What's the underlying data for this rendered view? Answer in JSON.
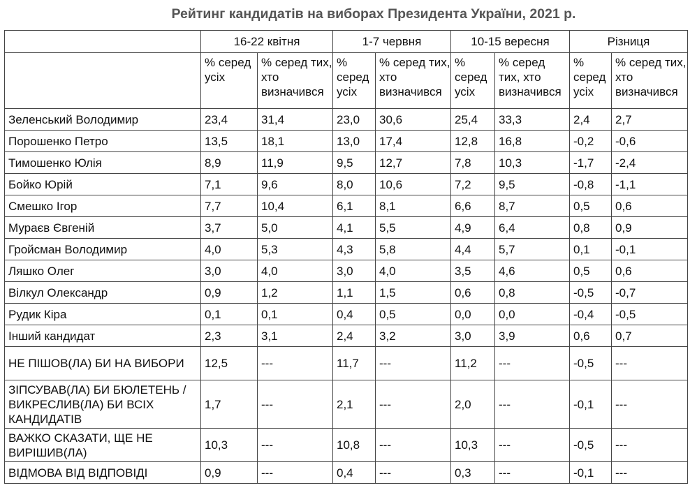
{
  "title": "Рейтинг кандидатів на виборах Президента України, 2021 р.",
  "periods": [
    "16-22 квітня",
    "1-7 червня",
    "10-15 вересня",
    "Різниця"
  ],
  "subheaders": {
    "all": "% серед усіх",
    "decided": "% серед тих, хто визначився"
  },
  "rows": [
    {
      "name": "Зеленський Володимир",
      "v": [
        "23,4",
        "31,4",
        "23,0",
        "30,6",
        "25,4",
        "33,3",
        "2,4",
        "2,7"
      ]
    },
    {
      "name": "Порошенко Петро",
      "v": [
        "13,5",
        "18,1",
        "13,0",
        "17,4",
        "12,8",
        "16,8",
        "-0,2",
        "-0,6"
      ]
    },
    {
      "name": "Тимошенко Юлія",
      "v": [
        "8,9",
        "11,9",
        "9,5",
        "12,7",
        "7,8",
        "10,3",
        "-1,7",
        "-2,4"
      ]
    },
    {
      "name": "Бойко Юрій",
      "v": [
        "7,1",
        "9,6",
        "8,0",
        "10,6",
        "7,2",
        "9,5",
        "-0,8",
        "-1,1"
      ]
    },
    {
      "name": "Смешко Ігор",
      "v": [
        "7,7",
        "10,4",
        "6,1",
        "8,1",
        "6,6",
        "8,7",
        "0,5",
        "0,6"
      ]
    },
    {
      "name": "Мураєв Євгеній",
      "v": [
        "3,7",
        "5,0",
        "4,1",
        "5,5",
        "4,9",
        "6,4",
        "0,8",
        "0,9"
      ]
    },
    {
      "name": "Гройсман Володимир",
      "v": [
        "4,0",
        "5,3",
        "4,3",
        "5,8",
        "4,4",
        "5,7",
        "0,1",
        "-0,1"
      ]
    },
    {
      "name": "Ляшко Олег",
      "v": [
        "3,0",
        "4,0",
        "3,0",
        "4,0",
        "3,5",
        "4,6",
        "0,5",
        "0,6"
      ]
    },
    {
      "name": "Вілкул Олександр",
      "v": [
        "0,9",
        "1,2",
        "1,1",
        "1,5",
        "0,6",
        "0,8",
        "-0,5",
        "-0,7"
      ]
    },
    {
      "name": "Рудик Кіра",
      "v": [
        "0,1",
        "0,1",
        "0,4",
        "0,5",
        "0,0",
        "0,0",
        "-0,4",
        "-0,5"
      ]
    },
    {
      "name": "Інший кандидат",
      "v": [
        "2,3",
        "3,1",
        "2,4",
        "3,2",
        "3,0",
        "3,9",
        "0,6",
        "0,7"
      ]
    },
    {
      "name": "НЕ ПІШОВ(ЛА) БИ НА ВИБОРИ",
      "v": [
        "12,5",
        "---",
        "11,7",
        "---",
        "11,2",
        "---",
        "-0,5",
        "---"
      ]
    },
    {
      "name": "ЗІПСУВАВ(ЛА) БИ БЮЛЕТЕНЬ / ВИКРЕСЛИВ(ЛА) БИ ВСІХ КАНДИДАТІВ",
      "v": [
        "1,7",
        "---",
        "2,1",
        "---",
        "2,0",
        "---",
        "-0,1",
        "---"
      ]
    },
    {
      "name": "ВАЖКО СКАЗАТИ, ЩЕ НЕ ВИРІШИВ(ЛА)",
      "v": [
        "10,3",
        "---",
        "10,8",
        "---",
        "10,3",
        "---",
        "-0,5",
        "---"
      ]
    },
    {
      "name": "ВІДМОВА ВІД ВІДПОВІДІ",
      "v": [
        "0,9",
        "---",
        "0,4",
        "---",
        "0,3",
        "---",
        "-0,1",
        "---"
      ]
    }
  ]
}
